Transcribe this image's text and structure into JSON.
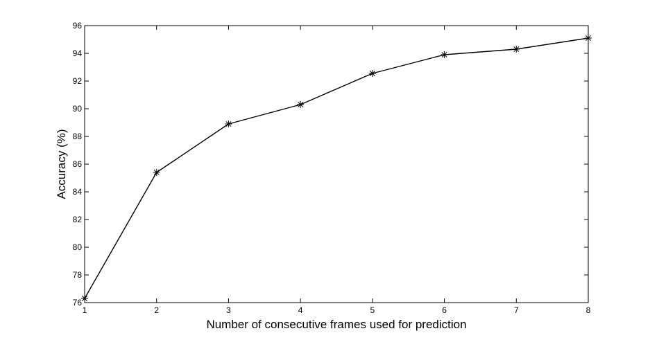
{
  "chart_data": {
    "type": "line",
    "title": "",
    "xlabel": "Number of consecutive frames used for prediction",
    "ylabel": "Accuracy (%)",
    "x": [
      1,
      2,
      3,
      4,
      5,
      6,
      7,
      8
    ],
    "series": [
      {
        "values": [
          76.3,
          85.4,
          88.9,
          90.3,
          92.55,
          93.9,
          94.3,
          95.1
        ],
        "color": "#000000",
        "marker": "asterisk"
      }
    ],
    "xlim": [
      1,
      8
    ],
    "ylim": [
      76,
      96
    ],
    "xticks": [
      1,
      2,
      3,
      4,
      5,
      6,
      7,
      8
    ],
    "yticks": [
      76,
      78,
      80,
      82,
      84,
      86,
      88,
      90,
      92,
      94,
      96
    ],
    "grid": false,
    "legend": "none"
  }
}
